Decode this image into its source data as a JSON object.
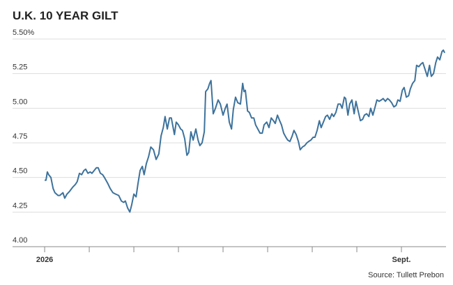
{
  "chart_data": {
    "type": "line",
    "title": "U.K. 10 YEAR GILT",
    "source": "Source: Tullett Prebon",
    "x": [
      0,
      0.03,
      0.06,
      0.09,
      0.14,
      0.19,
      0.23,
      0.3,
      0.34,
      0.41,
      0.45,
      0.5,
      0.56,
      0.63,
      0.69,
      0.73,
      0.78,
      0.83,
      0.88,
      0.92,
      0.97,
      1.02,
      1.06,
      1.11,
      1.16,
      1.2,
      1.25,
      1.3,
      1.34,
      1.41,
      1.47,
      1.53,
      1.59,
      1.66,
      1.72,
      1.77,
      1.81,
      1.86,
      1.91,
      1.95,
      2,
      2.05,
      2.09,
      2.14,
      2.19,
      2.23,
      2.28,
      2.33,
      2.38,
      2.44,
      2.5,
      2.56,
      2.61,
      2.66,
      2.7,
      2.75,
      2.8,
      2.84,
      2.91,
      2.95,
      3,
      3.05,
      3.09,
      3.14,
      3.19,
      3.23,
      3.28,
      3.33,
      3.39,
      3.44,
      3.48,
      3.53,
      3.58,
      3.61,
      3.66,
      3.7,
      3.73,
      3.78,
      3.83,
      3.89,
      3.94,
      4,
      4.05,
      4.09,
      4.14,
      4.19,
      4.23,
      4.28,
      4.33,
      4.39,
      4.44,
      4.47,
      4.5,
      4.55,
      4.59,
      4.64,
      4.69,
      4.73,
      4.78,
      4.83,
      4.88,
      4.92,
      4.98,
      5.03,
      5.08,
      5.13,
      5.17,
      5.22,
      5.27,
      5.31,
      5.36,
      5.41,
      5.45,
      5.5,
      5.55,
      5.59,
      5.64,
      5.69,
      5.73,
      5.78,
      5.83,
      5.88,
      5.92,
      5.97,
      6.02,
      6.06,
      6.11,
      6.16,
      6.2,
      6.25,
      6.3,
      6.34,
      6.39,
      6.44,
      6.48,
      6.53,
      6.58,
      6.63,
      6.67,
      6.72,
      6.75,
      6.8,
      6.84,
      6.89,
      6.94,
      6.98,
      7.03,
      7.08,
      7.13,
      7.17,
      7.22,
      7.27,
      7.31,
      7.36,
      7.41,
      7.45,
      7.5,
      7.55,
      7.59,
      7.64,
      7.69,
      7.73,
      7.78,
      7.83,
      7.88,
      7.92,
      7.97,
      8.02,
      8.06,
      8.11,
      8.16,
      8.2,
      8.25,
      8.3,
      8.34,
      8.39,
      8.44,
      8.48,
      8.53,
      8.58,
      8.63,
      8.67,
      8.72,
      8.77,
      8.81,
      8.86,
      8.91,
      8.94,
      8.97
    ],
    "values": [
      4.48,
      4.48,
      4.54,
      4.52,
      4.5,
      4.42,
      4.39,
      4.37,
      4.37,
      4.39,
      4.35,
      4.38,
      4.4,
      4.43,
      4.45,
      4.47,
      4.53,
      4.52,
      4.55,
      4.56,
      4.53,
      4.54,
      4.53,
      4.55,
      4.57,
      4.57,
      4.53,
      4.52,
      4.5,
      4.46,
      4.42,
      4.39,
      4.38,
      4.37,
      4.33,
      4.32,
      4.33,
      4.28,
      4.25,
      4.3,
      4.38,
      4.36,
      4.45,
      4.55,
      4.58,
      4.52,
      4.6,
      4.65,
      4.72,
      4.7,
      4.63,
      4.67,
      4.8,
      4.86,
      4.94,
      4.85,
      4.93,
      4.93,
      4.81,
      4.9,
      4.88,
      4.85,
      4.84,
      4.78,
      4.66,
      4.68,
      4.83,
      4.77,
      4.85,
      4.77,
      4.73,
      4.75,
      4.83,
      5.12,
      5.14,
      5.18,
      5.2,
      4.96,
      5.0,
      5.06,
      5.03,
      4.95,
      5.0,
      5.03,
      4.9,
      4.85,
      4.99,
      5.08,
      5.04,
      5.03,
      5.18,
      5.12,
      5.13,
      4.98,
      4.97,
      4.93,
      4.93,
      4.88,
      4.85,
      4.82,
      4.82,
      4.88,
      4.9,
      4.86,
      4.93,
      4.91,
      4.89,
      4.95,
      4.91,
      4.88,
      4.82,
      4.79,
      4.77,
      4.76,
      4.8,
      4.84,
      4.81,
      4.76,
      4.7,
      4.72,
      4.73,
      4.75,
      4.76,
      4.77,
      4.79,
      4.79,
      4.84,
      4.91,
      4.86,
      4.9,
      4.94,
      4.95,
      4.92,
      4.96,
      4.94,
      4.97,
      5.03,
      5.03,
      5.0,
      5.08,
      5.07,
      4.95,
      5.03,
      5.06,
      4.96,
      5.05,
      4.98,
      4.91,
      4.92,
      4.95,
      4.96,
      4.94,
      5.0,
      4.95,
      5.01,
      5.06,
      5.05,
      5.06,
      5.07,
      5.05,
      5.07,
      5.06,
      5.04,
      5.01,
      5.02,
      5.06,
      5.05,
      5.13,
      5.15,
      5.08,
      5.09,
      5.14,
      5.18,
      5.2,
      5.31,
      5.3,
      5.32,
      5.33,
      5.28,
      5.23,
      5.31,
      5.23,
      5.25,
      5.33,
      5.37,
      5.35,
      5.41,
      5.42,
      5.4
    ],
    "color": "#3d729c",
    "xlim": [
      -0.72,
      9.0
    ],
    "xticks": [
      {
        "value": 0,
        "label": "2026"
      },
      {
        "value": 1,
        "label": null
      },
      {
        "value": 2,
        "label": null
      },
      {
        "value": 3,
        "label": null
      },
      {
        "value": 4,
        "label": null
      },
      {
        "value": 5,
        "label": null
      },
      {
        "value": 6,
        "label": null
      },
      {
        "value": 7,
        "label": null
      },
      {
        "value": 8,
        "label": "Sept."
      }
    ],
    "ylim": [
      4.0,
      5.5
    ],
    "yticks": [
      {
        "value": 4.0,
        "label": "4.00"
      },
      4.25,
      {
        "value": 4.5,
        "label": "4.50"
      },
      4.75,
      {
        "value": 5.0,
        "label": "5.00"
      },
      5.25,
      {
        "value": 5.5,
        "label": "5.50%"
      }
    ],
    "grid": true
  }
}
